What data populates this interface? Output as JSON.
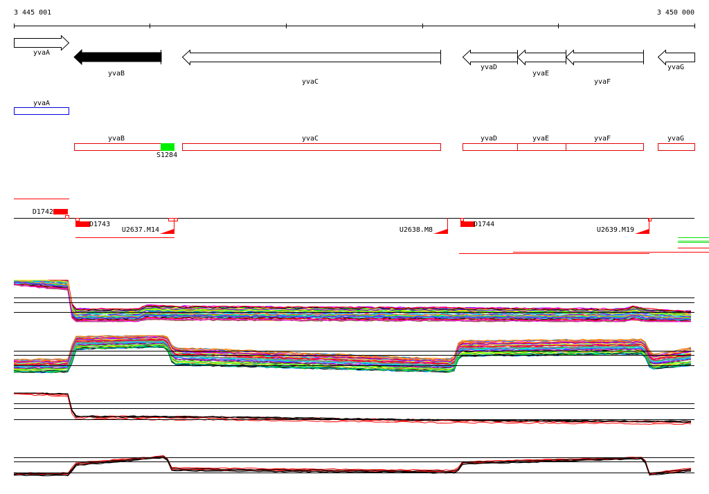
{
  "ruler": {
    "start_label": "3 445 001",
    "end_label": "3 450 000"
  },
  "genes": [
    {
      "name": "yvaA",
      "strand": "+",
      "highlighted": false
    },
    {
      "name": "yvaB",
      "strand": "-",
      "highlighted": true
    },
    {
      "name": "yvaC",
      "strand": "-",
      "highlighted": false
    },
    {
      "name": "yvaD",
      "strand": "-",
      "highlighted": false
    },
    {
      "name": "yvaE",
      "strand": "-",
      "highlighted": false
    },
    {
      "name": "yvaF",
      "strand": "-",
      "highlighted": false
    },
    {
      "name": "yvaG",
      "strand": "-",
      "highlighted": false
    }
  ],
  "blue_track": {
    "label": "yvaA"
  },
  "red_track": {
    "labels": [
      "yvaB",
      "yvaC",
      "yvaD",
      "yvaE",
      "yvaF",
      "yvaG"
    ],
    "marker_label": "S1284"
  },
  "features": {
    "downstream": [
      "D1742",
      "D1743",
      "D1744"
    ],
    "upstream": [
      "U2637.M14",
      "U2638.M8",
      "U2639.M19"
    ]
  },
  "colors": {
    "gene_box": "#e00000",
    "blue_box": "#0000e0",
    "marker": "#00e000",
    "feature": "#ff0000",
    "profile_palette": [
      "#ff00ff",
      "#00ffff",
      "#ff0000",
      "#00ff00",
      "#0080ff",
      "#ff8000",
      "#808080",
      "#ffff00",
      "#8000ff",
      "#a05050",
      "#000000",
      "#00c0a0"
    ]
  },
  "profiles": {
    "multi_line_count": 45,
    "condensed_line_count": 6
  }
}
